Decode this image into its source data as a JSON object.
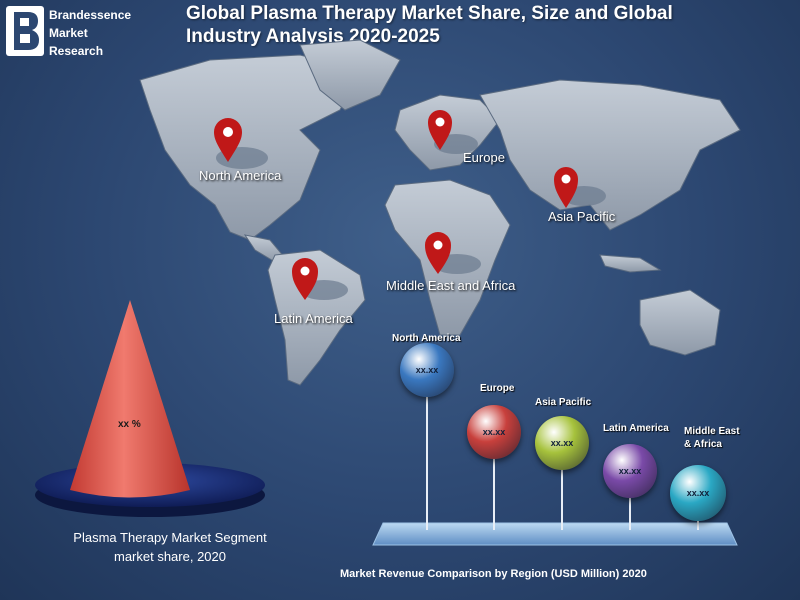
{
  "brand": {
    "line1": "Brandessence",
    "line2": "Market",
    "line3": "Research"
  },
  "title": {
    "line1": "Global Plasma Therapy Market Share, Size and Global",
    "line2": "Industry Analysis 2020-2025"
  },
  "map_labels": {
    "north_america": "North America",
    "europe": "Europe",
    "asia_pacific": "Asia Pacific",
    "middle_east_africa": "Middle East and Africa",
    "latin_america": "Latin America"
  },
  "segment": {
    "value": "xx %",
    "caption_line1": "Plasma Therapy  Market Segment",
    "caption_line2": "market share, 2020"
  },
  "revenue": {
    "caption": "Market Revenue Comparison by Region (USD Million) 2020",
    "bars": [
      {
        "label": "North America",
        "value": "xx.xx",
        "color": "#3a78c0"
      },
      {
        "label": "Europe",
        "value": "xx.xx",
        "color": "#c8403c"
      },
      {
        "label": "Asia Pacific",
        "value": "xx.xx",
        "color": "#a6c23c"
      },
      {
        "label": "Latin America",
        "value": "xx.xx",
        "color": "#7a4aa8"
      },
      {
        "label_line1": "Middle East",
        "label_line2": "& Africa",
        "value": "xx.xx",
        "color": "#2aa8c4"
      }
    ]
  },
  "colors": {
    "background": "#2c4771",
    "pin": "#c01818",
    "map": "#9aa6b4"
  }
}
